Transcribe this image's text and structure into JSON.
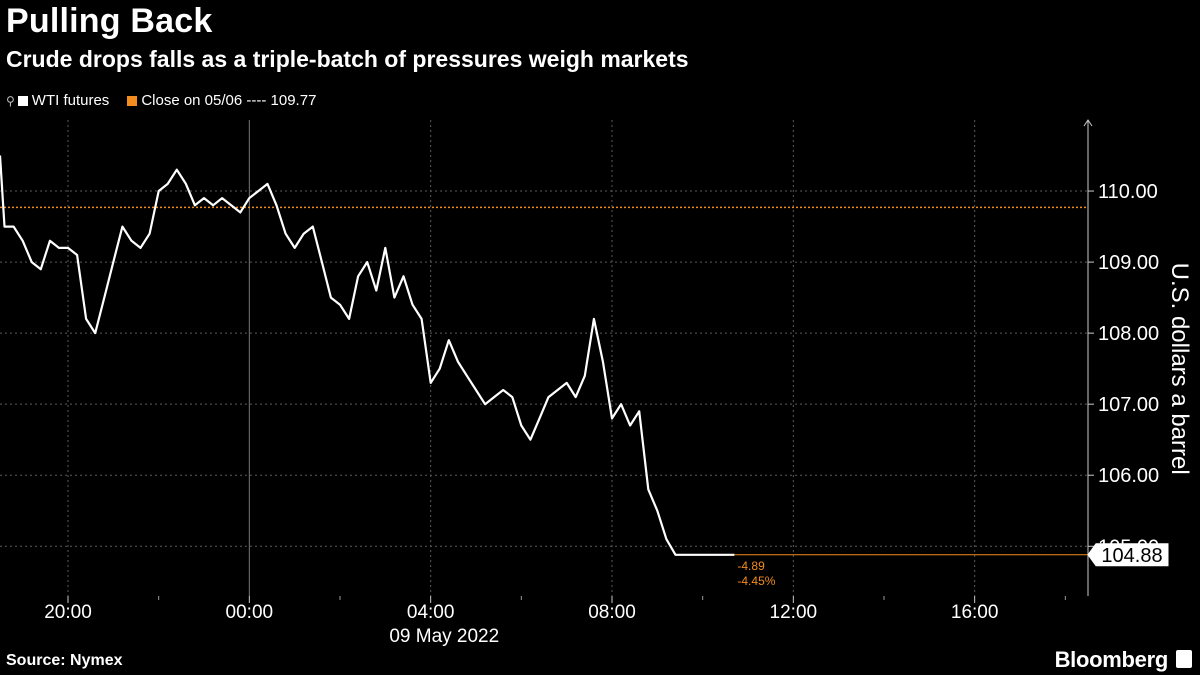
{
  "header": {
    "title": "Pulling Back",
    "subtitle": "Crude drops falls as a triple-batch of pressures weigh markets"
  },
  "legend": {
    "series_label": "WTI futures",
    "close_label": "Close on 05/06 ---- 109.77"
  },
  "footer": {
    "source": "Source: Nymex",
    "brand": "Bloomberg"
  },
  "colors": {
    "background": "#000000",
    "line": "#ffffff",
    "close": "#f28c1e",
    "grid": "#5a5a5a"
  },
  "chart_data": {
    "type": "line",
    "title": "Pulling Back",
    "subtitle": "Crude drops falls as a triple-batch of pressures weigh markets",
    "ylabel": "U.S. dollars a barrel",
    "xlabel": "09 May 2022",
    "ylim": [
      104.3,
      111.0
    ],
    "xlim": [
      -5.5,
      18.5
    ],
    "y_ticks": [
      105,
      106,
      107,
      108,
      109,
      110
    ],
    "y_tick_labels": [
      "105.00",
      "106.00",
      "107.00",
      "108.00",
      "109.00",
      "110.00"
    ],
    "x_ticks": [
      -4,
      0,
      4,
      8,
      12,
      16
    ],
    "x_tick_labels": [
      "20:00",
      "00:00",
      "04:00",
      "08:00",
      "12:00",
      "16:00"
    ],
    "grid": true,
    "legend_position": "top-left",
    "close_reference": {
      "label": "Close on 05/06",
      "value": 109.77
    },
    "last_value": {
      "value": 104.88,
      "label": "104.88",
      "change": "-4.89",
      "change_pct": "-4.45%"
    },
    "series": [
      {
        "name": "WTI futures",
        "x": [
          -5.5,
          -5.4,
          -5.2,
          -5.0,
          -4.8,
          -4.6,
          -4.4,
          -4.2,
          -4.0,
          -3.8,
          -3.6,
          -3.4,
          -3.2,
          -3.0,
          -2.8,
          -2.6,
          -2.4,
          -2.2,
          -2.0,
          -1.8,
          -1.6,
          -1.4,
          -1.2,
          -1.0,
          -0.8,
          -0.6,
          -0.4,
          -0.2,
          0.0,
          0.2,
          0.4,
          0.6,
          0.8,
          1.0,
          1.2,
          1.4,
          1.6,
          1.8,
          2.0,
          2.2,
          2.4,
          2.6,
          2.8,
          3.0,
          3.2,
          3.4,
          3.6,
          3.8,
          4.0,
          4.2,
          4.4,
          4.6,
          4.8,
          5.0,
          5.2,
          5.4,
          5.6,
          5.8,
          6.0,
          6.2,
          6.4,
          6.6,
          6.8,
          7.0,
          7.2,
          7.4,
          7.6,
          7.8,
          8.0,
          8.2,
          8.4,
          8.6,
          8.8,
          9.0,
          9.2,
          9.4,
          9.6,
          9.8,
          10.0,
          10.2,
          10.4,
          10.5,
          10.6,
          10.7
        ],
        "values": [
          110.5,
          109.5,
          109.5,
          109.3,
          109.0,
          108.9,
          109.3,
          109.2,
          109.2,
          109.1,
          108.2,
          108.0,
          108.5,
          109.0,
          109.5,
          109.3,
          109.2,
          109.4,
          110.0,
          110.1,
          110.3,
          110.1,
          109.8,
          109.9,
          109.8,
          109.9,
          109.8,
          109.7,
          109.9,
          110.0,
          110.1,
          109.8,
          109.4,
          109.2,
          109.4,
          109.5,
          109.0,
          108.5,
          108.4,
          108.2,
          108.8,
          109.0,
          108.6,
          109.2,
          108.5,
          108.8,
          108.4,
          108.2,
          107.3,
          107.5,
          107.9,
          107.6,
          107.4,
          107.2,
          107.0,
          107.1,
          107.2,
          107.1,
          106.7,
          106.5,
          106.8,
          107.1,
          107.2,
          107.3,
          107.1,
          107.4,
          108.2,
          107.6,
          106.8,
          107.0,
          106.7,
          106.9,
          105.8,
          105.5,
          105.1,
          104.88,
          104.88,
          104.88,
          104.88,
          104.88,
          104.88,
          104.88,
          104.88,
          104.88
        ]
      }
    ]
  }
}
